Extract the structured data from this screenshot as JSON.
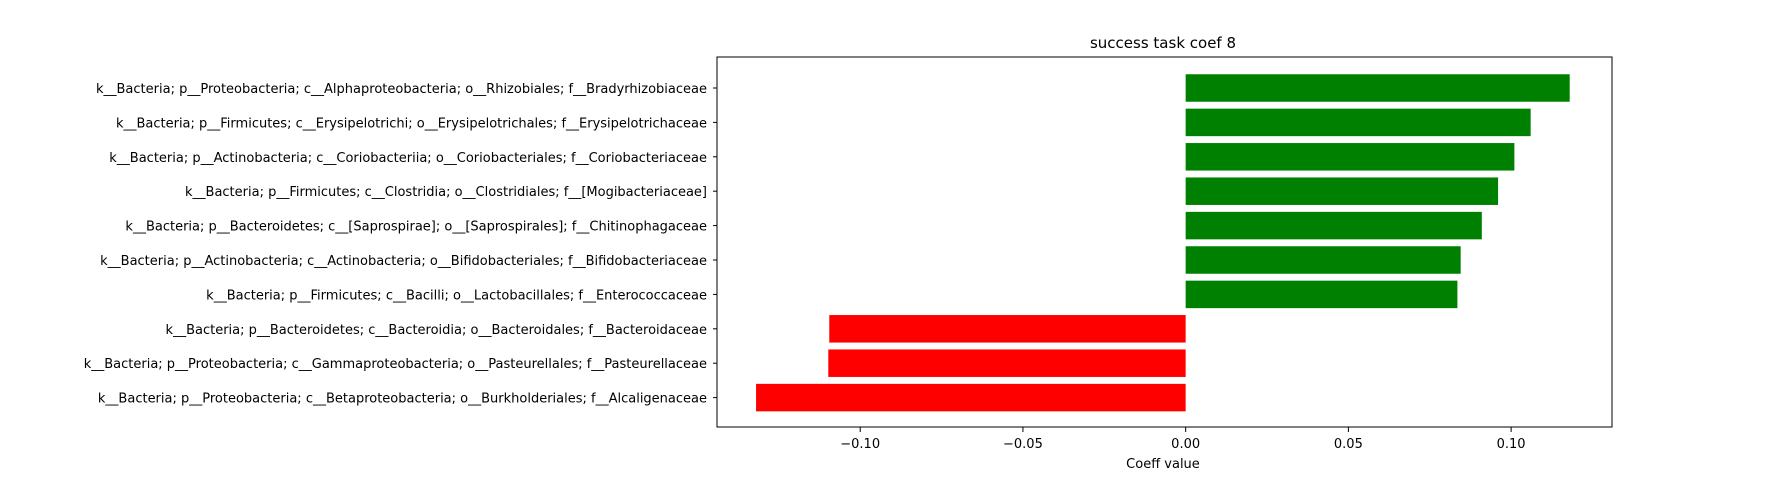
{
  "chart_data": {
    "type": "bar",
    "orientation": "horizontal",
    "title": "success task coef 8",
    "xlabel": "Coeff value",
    "ylabel": "",
    "categories": [
      "k__Bacteria; p__Proteobacteria; c__Alphaproteobacteria; o__Rhizobiales; f__Bradyrhizobiaceae",
      "k__Bacteria; p__Firmicutes; c__Erysipelotrichi; o__Erysipelotrichales; f__Erysipelotrichaceae",
      "k__Bacteria; p__Actinobacteria; c__Coriobacteriia; o__Coriobacteriales; f__Coriobacteriaceae",
      "k__Bacteria; p__Firmicutes; c__Clostridia; o__Clostridiales; f__[Mogibacteriaceae]",
      "k__Bacteria; p__Bacteroidetes; c__[Saprospirae]; o__[Saprospirales]; f__Chitinophagaceae",
      "k__Bacteria; p__Actinobacteria; c__Actinobacteria; o__Bifidobacteriales; f__Bifidobacteriaceae",
      "k__Bacteria; p__Firmicutes; c__Bacilli; o__Lactobacillales; f__Enterococcaceae",
      "k__Bacteria; p__Bacteroidetes; c__Bacteroidia; o__Bacteroidales; f__Bacteroidaceae",
      "k__Bacteria; p__Proteobacteria; c__Gammaproteobacteria; o__Pasteurellales; f__Pasteurellaceae",
      "k__Bacteria; p__Proteobacteria; c__Betaproteobacteria; o__Burkholderiales; f__Alcaligenaceae"
    ],
    "values": [
      0.118,
      0.106,
      0.101,
      0.096,
      0.091,
      0.0845,
      0.0835,
      -0.1095,
      -0.1098,
      -0.132
    ],
    "colors": [
      "#008000",
      "#008000",
      "#008000",
      "#008000",
      "#008000",
      "#008000",
      "#008000",
      "#ff0000",
      "#ff0000",
      "#ff0000"
    ],
    "xlim": [
      -0.144,
      0.131
    ],
    "xticks": [
      -0.1,
      -0.05,
      0.0,
      0.05,
      0.1
    ],
    "xtick_labels": [
      "−0.10",
      "−0.05",
      "0.00",
      "0.05",
      "0.10"
    ],
    "grid": false,
    "legend": "none"
  }
}
